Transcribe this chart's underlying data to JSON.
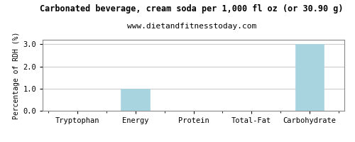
{
  "title": "Carbonated beverage, cream soda per 1,000 fl oz (or 30.90 g)",
  "subtitle": "www.dietandfitnesstoday.com",
  "ylabel": "Percentage of RDH (%)",
  "categories": [
    "Tryptophan",
    "Energy",
    "Protein",
    "Total-Fat",
    "Carbohydrate"
  ],
  "values": [
    0.0,
    1.0,
    0.0,
    0.0,
    3.0
  ],
  "bar_color": "#a8d4e0",
  "ylim": [
    0.0,
    3.2
  ],
  "yticks": [
    0.0,
    1.0,
    2.0,
    3.0
  ],
  "background_color": "#ffffff",
  "plot_bg_color": "#ffffff",
  "border_color": "#888888",
  "grid_color": "#cccccc",
  "title_fontsize": 8.5,
  "subtitle_fontsize": 8,
  "ylabel_fontsize": 7,
  "tick_fontsize": 7.5
}
